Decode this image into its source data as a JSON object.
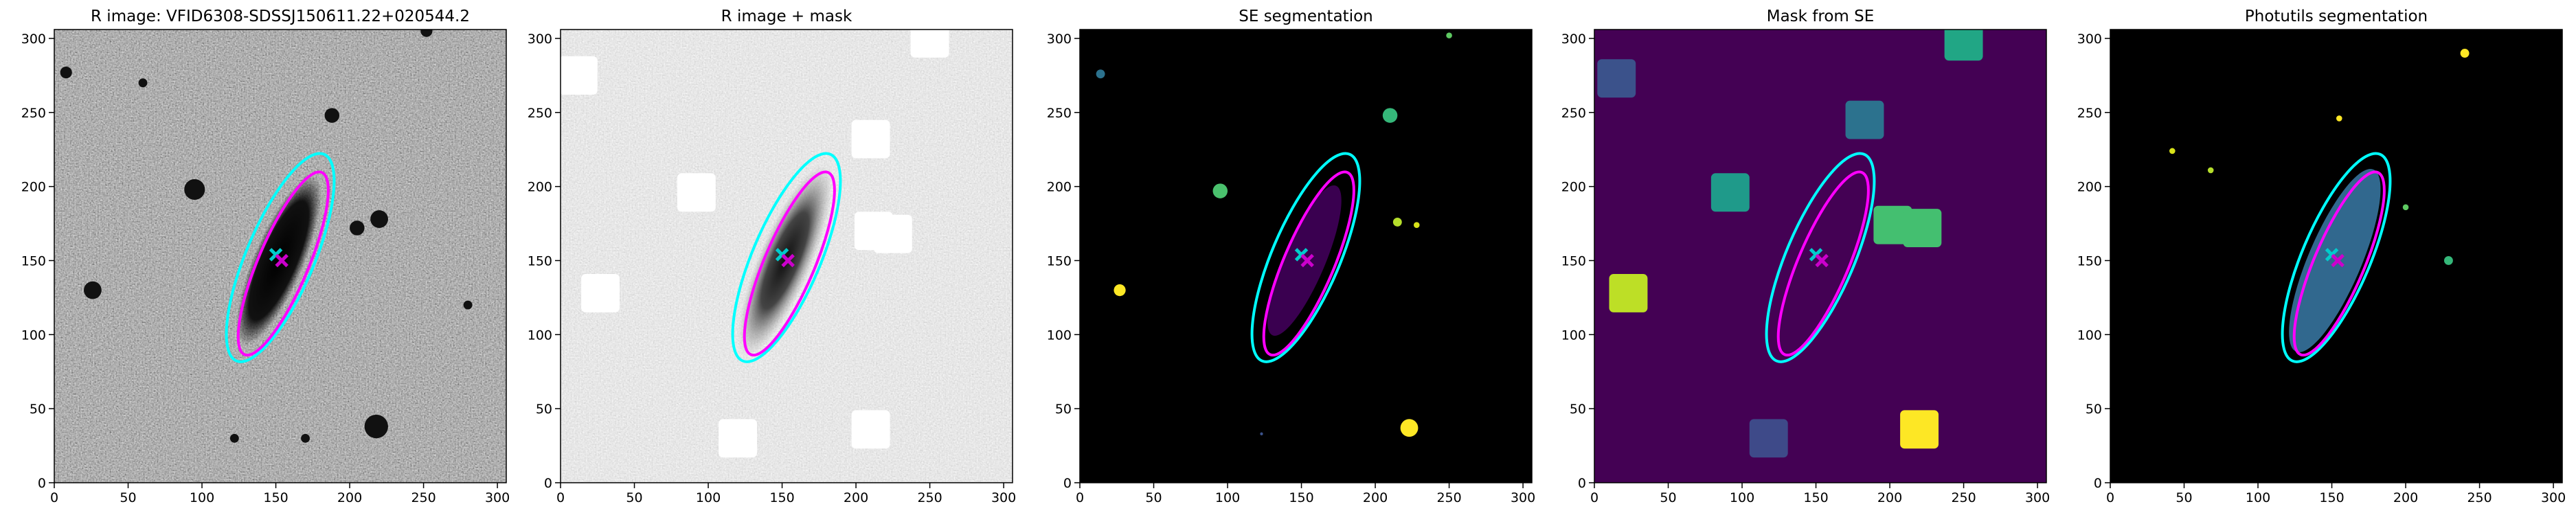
{
  "chart_data": [
    {
      "type": "image",
      "title": "R image: VFID6308-SDSSJ150611.22+020544.2",
      "xlim": [
        0,
        306
      ],
      "ylim": [
        0,
        306
      ],
      "xticks": [
        0,
        50,
        100,
        150,
        200,
        250,
        300
      ],
      "yticks": [
        0,
        50,
        100,
        150,
        200,
        250,
        300
      ]
    },
    {
      "type": "image",
      "title": "R image + mask",
      "xlim": [
        0,
        306
      ],
      "ylim": [
        0,
        306
      ],
      "xticks": [
        0,
        50,
        100,
        150,
        200,
        250,
        300
      ],
      "yticks": [
        0,
        50,
        100,
        150,
        200,
        250,
        300
      ]
    },
    {
      "type": "image",
      "title": "SE segmentation",
      "xlim": [
        0,
        306
      ],
      "ylim": [
        0,
        306
      ],
      "xticks": [
        0,
        50,
        100,
        150,
        200,
        250,
        300
      ],
      "yticks": [
        0,
        50,
        100,
        150,
        200,
        250,
        300
      ]
    },
    {
      "type": "image",
      "title": "Mask from SE",
      "xlim": [
        0,
        306
      ],
      "ylim": [
        0,
        306
      ],
      "xticks": [
        0,
        50,
        100,
        150,
        200,
        250,
        300
      ],
      "yticks": [
        0,
        50,
        100,
        150,
        200,
        250,
        300
      ]
    },
    {
      "type": "image",
      "title": "Photutils segmentation",
      "xlim": [
        0,
        306
      ],
      "ylim": [
        0,
        306
      ],
      "xticks": [
        0,
        50,
        100,
        150,
        200,
        250,
        300
      ],
      "yticks": [
        0,
        50,
        100,
        150,
        200,
        250,
        300
      ]
    }
  ]
}
